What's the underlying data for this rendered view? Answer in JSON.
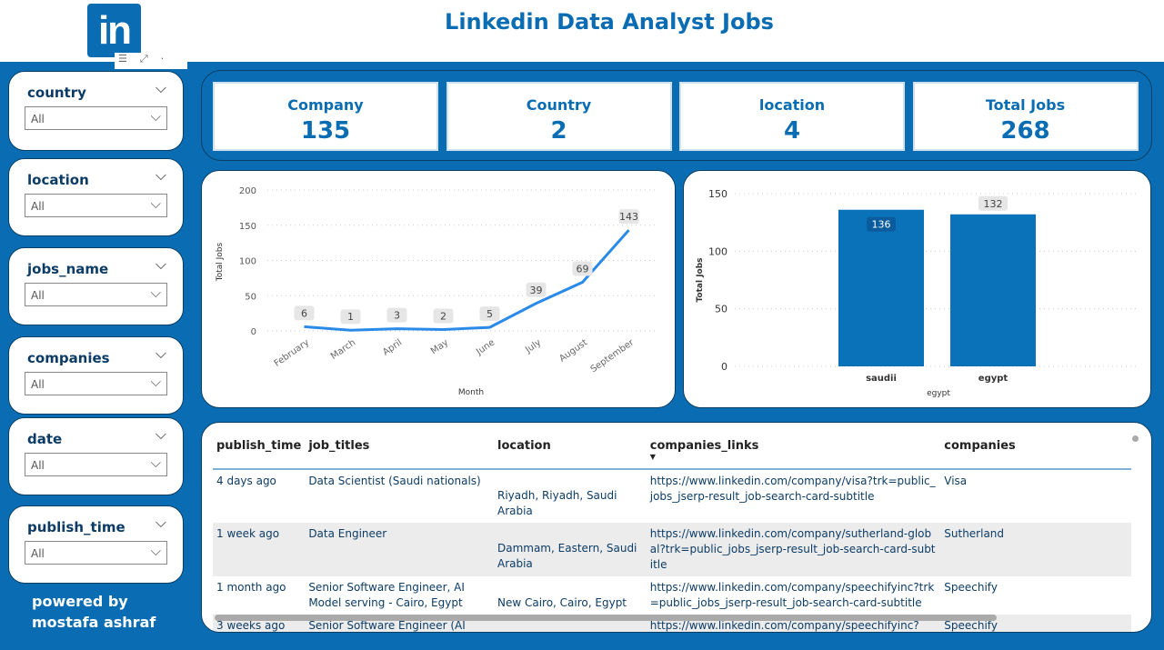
{
  "header": {
    "title": "Linkedin Data Analyst Jobs",
    "logo_text": "in"
  },
  "slicers": [
    {
      "label": "country",
      "value": "All"
    },
    {
      "label": "location",
      "value": "All"
    },
    {
      "label": "jobs_name",
      "value": "All"
    },
    {
      "label": "companies",
      "value": "All"
    },
    {
      "label": "date",
      "value": "All"
    },
    {
      "label": "publish_time",
      "value": "All"
    }
  ],
  "footer": {
    "line1": "powered by",
    "line2": "mostafa ashraf"
  },
  "cards": [
    {
      "label": "Company",
      "value": "135"
    },
    {
      "label": "Country",
      "value": "2"
    },
    {
      "label": "location",
      "value": "4"
    },
    {
      "label": "Total Jobs",
      "value": "268"
    }
  ],
  "chart_data": [
    {
      "type": "line",
      "xlabel": "Month",
      "ylabel": "Total Jobs",
      "ylim": [
        0,
        200
      ],
      "yticks": [
        0,
        50,
        100,
        150,
        200
      ],
      "grid": true,
      "color": "#2a8ae8",
      "categories": [
        "February",
        "March",
        "April",
        "May",
        "June",
        "July",
        "August",
        "September"
      ],
      "values": [
        6,
        1,
        3,
        2,
        5,
        39,
        69,
        143
      ]
    },
    {
      "type": "bar",
      "xlabel": "egypt",
      "ylabel": "Total Jobs",
      "ylim": [
        0,
        150
      ],
      "yticks": [
        0,
        50,
        100,
        150
      ],
      "grid": true,
      "color": "#0a72b8",
      "categories": [
        "saudii",
        "egypt"
      ],
      "values": [
        136,
        132
      ]
    }
  ],
  "table": {
    "columns": [
      "publish_time",
      "job_titles",
      "location",
      "companies_links",
      "companies"
    ],
    "sorted_column": "companies_links",
    "rows": [
      [
        "4 days ago",
        "Data Scientist (Saudi nationals)",
        "Riyadh, Riyadh, Saudi Arabia",
        "https://www.linkedin.com/company/visa?trk=public_jobs_jserp-result_job-search-card-subtitle",
        "Visa"
      ],
      [
        "1 week ago",
        "Data Engineer",
        "Dammam, Eastern, Saudi Arabia",
        "https://www.linkedin.com/company/sutherland-global?trk=public_jobs_jserp-result_job-search-card-subtitle",
        "Sutherland"
      ],
      [
        "1 month ago",
        "Senior Software Engineer, AI Model serving - Cairo, Egypt",
        "New Cairo, Cairo, Egypt",
        "https://www.linkedin.com/company/speechifyinc?trk=public_jobs_jserp-result_job-search-card-subtitle",
        "Speechify"
      ],
      [
        "3 weeks ago",
        "Senior Software Engineer (AI",
        "",
        "https://www.linkedin.com/company/speechifyinc?",
        "Speechify"
      ]
    ]
  }
}
